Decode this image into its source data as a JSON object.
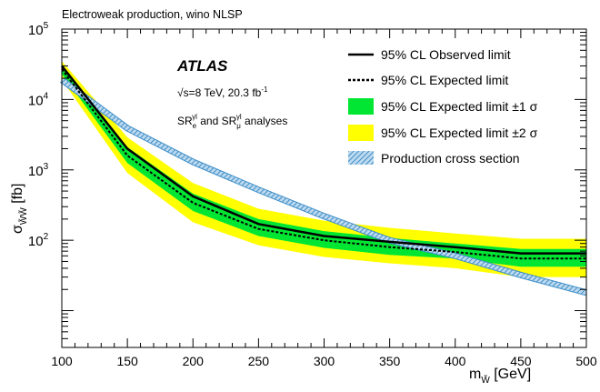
{
  "header": {
    "title": "Electroweak production, wino NLSP"
  },
  "annotations": {
    "experiment": "ATLAS",
    "energy": "√s=8 TeV, 20.3 fb",
    "energy_sup": "-1",
    "regions_prefix": "SR",
    "regions_e_sub": "e",
    "regions_e_sup": "γl",
    "regions_and": " and SR",
    "regions_mu_sub": "μ",
    "regions_mu_sup": "γl",
    "regions_suffix": " analyses"
  },
  "colors": {
    "band_1sigma": "#00e633",
    "band_2sigma": "#ffff00",
    "xsec_line": "#3f8fc8",
    "observed": "#000000",
    "expected": "#000000"
  },
  "chart_data": {
    "type": "line",
    "title": "Electroweak production, wino NLSP",
    "xlabel": "m_W̃ [GeV]",
    "ylabel": "σ_W̃W̃ [fb]",
    "xlim": [
      100,
      500
    ],
    "ylim": [
      3,
      100000
    ],
    "ylog": true,
    "xticks": [
      100,
      150,
      200,
      250,
      300,
      350,
      400,
      450,
      500
    ],
    "yticks": [
      {
        "value": 100,
        "base": "10",
        "exp": "2"
      },
      {
        "value": 1000,
        "base": "10",
        "exp": "3"
      },
      {
        "value": 10000,
        "base": "10",
        "exp": "4"
      },
      {
        "value": 100000,
        "base": "10",
        "exp": "5"
      }
    ],
    "x": [
      100,
      150,
      200,
      250,
      300,
      350,
      400,
      450,
      500
    ],
    "series": [
      {
        "name": "95% CL Observed limit",
        "values": [
          30000,
          2000,
          420,
          170,
          115,
          95,
          80,
          65,
          65
        ]
      },
      {
        "name": "95% CL Expected limit",
        "values": [
          27000,
          1600,
          340,
          145,
          100,
          80,
          68,
          55,
          55
        ]
      },
      {
        "name": "95% CL Expected limit ±1 σ",
        "lower": [
          23000,
          1250,
          260,
          115,
          78,
          62,
          55,
          42,
          42
        ],
        "upper": [
          31000,
          2100,
          460,
          200,
          135,
          108,
          90,
          75,
          75
        ]
      },
      {
        "name": "95% CL Expected limit ±2 σ",
        "lower": [
          19000,
          900,
          180,
          85,
          58,
          47,
          40,
          30,
          30
        ],
        "upper": [
          35000,
          2900,
          650,
          280,
          190,
          150,
          125,
          105,
          105
        ]
      },
      {
        "name": "Production cross section",
        "values": [
          19000,
          3900,
          1300,
          520,
          220,
          100,
          60,
          32,
          18
        ]
      }
    ],
    "legend": {
      "observed": "95% CL Observed limit",
      "expected": "95% CL Expected limit",
      "one_sigma": "95% CL Expected limit ±1 σ",
      "two_sigma": "95% CL Expected limit ±2 σ",
      "xsec": "Production cross section"
    },
    "legend_position": "top-right",
    "grid": false
  }
}
